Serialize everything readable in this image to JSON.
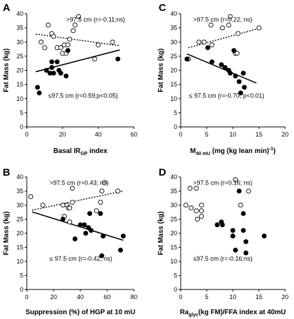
{
  "chart_data": [
    {
      "panel": "A",
      "type": "scatter",
      "xlabel": "Basal IR",
      "xlabel_sub": "GP",
      "xlabel_suffix": " index",
      "ylabel": "Fat Mass (kg)",
      "xlim": [
        0,
        60
      ],
      "ylim": [
        0,
        40
      ],
      "xticks": [
        0,
        20,
        40,
        60
      ],
      "yticks": [
        0,
        5,
        10,
        15,
        20,
        25,
        30,
        35,
        40
      ],
      "annotations": [
        {
          "text": ">97.5 cm (r=-0.11;ns)",
          "x": 22,
          "y": 37.2
        },
        {
          "text": "≤97.5 cm (r=0.59;p<0.05)",
          "x": 12,
          "y": 10.3
        }
      ],
      "series": [
        {
          "marker": "open",
          "line": "dotted",
          "points": [
            [
              8,
              30
            ],
            [
              10,
              28
            ],
            [
              12,
              36
            ],
            [
              14,
              33
            ],
            [
              15,
              32
            ],
            [
              17,
              28
            ],
            [
              19,
              28
            ],
            [
              20,
              26
            ],
            [
              21,
              29
            ],
            [
              22,
              26
            ],
            [
              23,
              29
            ],
            [
              24,
              31
            ],
            [
              26,
              34
            ],
            [
              27,
              36
            ],
            [
              29,
              39
            ],
            [
              38,
              24
            ],
            [
              40,
              29
            ],
            [
              48,
              30
            ]
          ],
          "fit": [
            [
              5,
              32.8
            ],
            [
              52,
              28.7
            ]
          ]
        },
        {
          "marker": "filled",
          "line": "solid",
          "points": [
            [
              6,
              14
            ],
            [
              7,
              12
            ],
            [
              11,
              20
            ],
            [
              13,
              19
            ],
            [
              14,
              23
            ],
            [
              14,
              21
            ],
            [
              15,
              19
            ],
            [
              17,
              23
            ],
            [
              18,
              20
            ],
            [
              19,
              19
            ],
            [
              22,
              18
            ],
            [
              23,
              27
            ],
            [
              51,
              24
            ]
          ],
          "fit": [
            [
              5,
              19.5
            ],
            [
              52,
              27.2
            ]
          ]
        }
      ]
    },
    {
      "panel": "C",
      "type": "scatter",
      "xlabel": "M",
      "xlabel_sub": "40 mU",
      "xlabel_suffix": " (mg (kg lean min)",
      "xlabel_sup": "-1",
      "xlabel_suffix2": ")",
      "ylabel": "Fat Mass (kg)",
      "xlim": [
        0,
        20
      ],
      "ylim": [
        0,
        40
      ],
      "xticks": [
        0,
        5,
        10,
        15,
        20
      ],
      "yticks": [
        0,
        5,
        10,
        15,
        20,
        25,
        30,
        35,
        40
      ],
      "annotations": [
        {
          "text": ">97.5 cm (r=0.22; ns)",
          "x": 2.4,
          "y": 37.2
        },
        {
          "text": "≤ 97.5 cm (r=-0.70; p<0.01)",
          "x": 1.6,
          "y": 10.3
        }
      ],
      "series": [
        {
          "marker": "open",
          "line": "dotted",
          "points": [
            [
              1.5,
              24
            ],
            [
              3.5,
              30
            ],
            [
              4.5,
              30
            ],
            [
              5.8,
              36
            ],
            [
              6,
              29
            ],
            [
              8,
              35
            ],
            [
              9.2,
              36
            ],
            [
              9.5,
              39
            ],
            [
              10.5,
              26
            ],
            [
              11,
              33
            ],
            [
              15,
              35
            ],
            [
              10.8,
              26
            ]
          ],
          "fit": [
            [
              1.5,
              28
            ],
            [
              15,
              34.8
            ]
          ]
        },
        {
          "marker": "filled",
          "line": "solid",
          "points": [
            [
              1.2,
              24
            ],
            [
              5.2,
              28
            ],
            [
              6,
              23
            ],
            [
              7.8,
              22
            ],
            [
              8.5,
              21
            ],
            [
              9.2,
              20
            ],
            [
              9.5,
              19
            ],
            [
              10.2,
              27
            ],
            [
              10.5,
              18
            ],
            [
              11.2,
              16
            ],
            [
              11.5,
              12
            ],
            [
              12,
              19
            ],
            [
              12.2,
              14
            ]
          ],
          "fit": [
            [
              1.2,
              25.8
            ],
            [
              14.5,
              15.5
            ]
          ]
        }
      ]
    },
    {
      "panel": "B",
      "type": "scatter",
      "xlabel": "Suppression (%) of HGP at 10 mU",
      "ylabel": "Fat Mass (kg)",
      "xlim": [
        0,
        80
      ],
      "ylim": [
        0,
        40
      ],
      "xticks": [
        0,
        20,
        40,
        60,
        80
      ],
      "yticks": [
        0,
        5,
        10,
        15,
        20,
        25,
        30,
        35,
        40
      ],
      "annotations": [
        {
          "text": ">97.5 cm (r=0.43; ns)",
          "x": 17,
          "y": 37.2
        },
        {
          "text": "≤ 97.5 cm (r=-0.42; ns)",
          "x": 17,
          "y": 10.3
        }
      ],
      "series": [
        {
          "marker": "open",
          "line": "dotted",
          "points": [
            [
              3,
              33
            ],
            [
              12,
              30
            ],
            [
              27,
              30
            ],
            [
              28,
              26
            ],
            [
              30,
              30
            ],
            [
              31,
              29
            ],
            [
              32,
              29
            ],
            [
              32,
              24
            ],
            [
              34,
              31
            ],
            [
              34,
              36
            ],
            [
              52,
              28
            ],
            [
              55,
              31
            ],
            [
              56,
              35
            ],
            [
              58,
              38
            ],
            [
              68,
              35
            ]
          ],
          "fit": [
            [
              4,
              28.2
            ],
            [
              72,
              35
            ]
          ]
        },
        {
          "marker": "filled",
          "line": "solid",
          "points": [
            [
              27,
              25
            ],
            [
              36,
              18
            ],
            [
              40,
              23
            ],
            [
              43,
              23
            ],
            [
              44,
              20
            ],
            [
              46,
              22
            ],
            [
              47,
              27
            ],
            [
              48,
              21
            ],
            [
              55,
              27
            ],
            [
              57,
              19
            ],
            [
              56,
              12
            ],
            [
              70,
              14
            ],
            [
              72,
              19
            ]
          ],
          "fit": [
            [
              4,
              27.6
            ],
            [
              72,
              17.5
            ]
          ]
        }
      ]
    },
    {
      "panel": "D",
      "type": "scatter",
      "xlabel": "Ra",
      "xlabel_sub": "glyc",
      "xlabel_suffix": "(kg FM)/FFA index at 40mU",
      "ylabel": "Fat Mass (kg)",
      "xlim": [
        0,
        20
      ],
      "ylim": [
        0,
        40
      ],
      "xticks": [
        0,
        5,
        10,
        15,
        20
      ],
      "yticks": [
        0,
        5,
        10,
        15,
        20,
        25,
        30,
        35,
        40
      ],
      "annotations": [
        {
          "text": ">97.5 cm (r=0.16; ns)",
          "x": 2.4,
          "y": 37.2
        },
        {
          "text": "≤97.5 cm (r=-0.16;ns)",
          "x": 2.4,
          "y": 10.3
        }
      ],
      "series": [
        {
          "marker": "open",
          "line": "none",
          "points": [
            [
              1,
              30
            ],
            [
              1.8,
              36
            ],
            [
              2,
              29
            ],
            [
              3,
              36
            ],
            [
              3,
              28
            ],
            [
              3.2,
              25
            ],
            [
              4,
              30
            ],
            [
              4,
              28
            ],
            [
              4,
              26
            ],
            [
              10.5,
              39
            ],
            [
              13,
              35
            ],
            [
              11.5,
              30
            ]
          ],
          "fit": []
        },
        {
          "marker": "filled",
          "line": "none",
          "points": [
            [
              7,
              23
            ],
            [
              7.8,
              24
            ],
            [
              8,
              23
            ],
            [
              10,
              21
            ],
            [
              10,
              19
            ],
            [
              10.5,
              14
            ],
            [
              11.2,
              35
            ],
            [
              12,
              27
            ],
            [
              12,
              21
            ],
            [
              12.5,
              17
            ],
            [
              12.5,
              13
            ],
            [
              16,
              19
            ]
          ],
          "fit": []
        }
      ]
    }
  ]
}
